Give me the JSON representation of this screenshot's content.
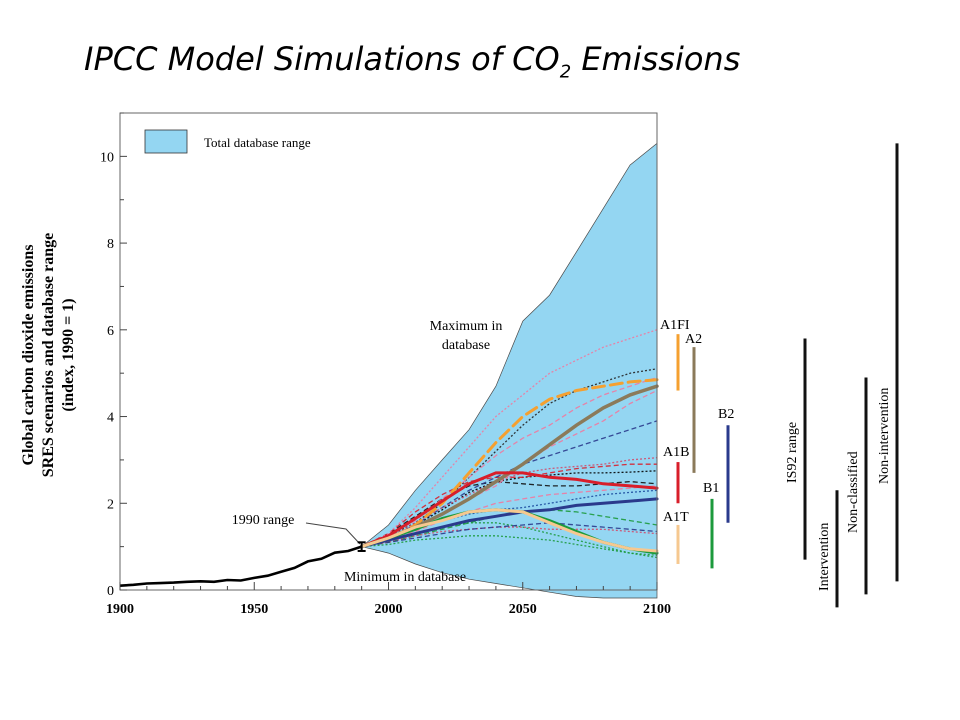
{
  "title": {
    "main": "IPCC Model Simulations of CO",
    "subscript": "2",
    "suffix": " Emissions"
  },
  "chart_data": {
    "type": "line",
    "ylabel": [
      "Global carbon dioxide emissions",
      "SRES scenarios and database range",
      "(index, 1990 = 1)"
    ],
    "xlabel": "",
    "xlim": [
      1900,
      2100
    ],
    "ylim": [
      0,
      11
    ],
    "x_ticks": [
      "1900",
      "1950",
      "2000",
      "2050",
      "2100"
    ],
    "y_ticks": [
      "0",
      "2",
      "4",
      "6",
      "8",
      "10"
    ],
    "legend": {
      "label": "Total database range",
      "color": "#94d6f2",
      "placement": "top-left"
    },
    "annotations": {
      "max": [
        "Maximum in",
        "database"
      ],
      "min": "Minimum in database",
      "range1990": "1990 range"
    },
    "historical": {
      "x": [
        1900,
        1905,
        1910,
        1915,
        1920,
        1925,
        1930,
        1935,
        1940,
        1945,
        1950,
        1955,
        1960,
        1965,
        1970,
        1975,
        1980,
        1985,
        1990
      ],
      "y": [
        0.1,
        0.12,
        0.15,
        0.16,
        0.17,
        0.19,
        0.2,
        0.19,
        0.23,
        0.22,
        0.28,
        0.33,
        0.42,
        0.51,
        0.66,
        0.72,
        0.86,
        0.9,
        1.0
      ]
    },
    "database_range": {
      "x": [
        1990,
        2000,
        2010,
        2020,
        2030,
        2040,
        2050,
        2060,
        2070,
        2080,
        2090,
        2100
      ],
      "max": [
        1.0,
        1.5,
        2.3,
        3.0,
        3.7,
        4.7,
        6.2,
        6.8,
        7.8,
        8.8,
        9.8,
        10.3
      ],
      "min": [
        1.0,
        0.85,
        0.6,
        0.4,
        0.25,
        0.15,
        0.05,
        -0.05,
        -0.15,
        -0.2,
        -0.22,
        -0.25
      ]
    },
    "x": [
      1990,
      2000,
      2010,
      2020,
      2030,
      2040,
      2050,
      2060,
      2070,
      2080,
      2090,
      2100
    ],
    "series": [
      {
        "name": "A1FI",
        "color": "#f5a030",
        "dash": "12,6",
        "width": 3,
        "values": [
          1.0,
          1.15,
          1.5,
          2.0,
          2.7,
          3.4,
          4.0,
          4.4,
          4.6,
          4.7,
          4.8,
          4.85
        ]
      },
      {
        "name": "A2",
        "color": "#8b7a5a",
        "dash": "",
        "width": 3.5,
        "values": [
          1.0,
          1.2,
          1.45,
          1.75,
          2.1,
          2.5,
          2.9,
          3.35,
          3.8,
          4.2,
          4.5,
          4.7
        ]
      },
      {
        "name": "A1B",
        "color": "#d81e2a",
        "dash": "",
        "width": 3,
        "values": [
          1.0,
          1.25,
          1.65,
          2.05,
          2.45,
          2.7,
          2.7,
          2.6,
          2.55,
          2.45,
          2.4,
          2.35
        ]
      },
      {
        "name": "B2",
        "color": "#2a3a8c",
        "dash": "",
        "width": 3,
        "values": [
          1.0,
          1.15,
          1.3,
          1.45,
          1.6,
          1.7,
          1.8,
          1.85,
          1.95,
          2.0,
          2.05,
          2.1
        ]
      },
      {
        "name": "B1",
        "color": "#1c9a3c",
        "dash": "",
        "width": 3,
        "values": [
          1.0,
          1.2,
          1.4,
          1.65,
          1.8,
          1.85,
          1.8,
          1.6,
          1.35,
          1.1,
          0.95,
          0.85
        ]
      },
      {
        "name": "A1T",
        "color": "#f6c890",
        "dash": "",
        "width": 3,
        "values": [
          1.0,
          1.2,
          1.45,
          1.6,
          1.8,
          1.85,
          1.8,
          1.55,
          1.3,
          1.1,
          0.95,
          0.9
        ]
      }
    ],
    "other_runs": [
      {
        "color": "#000000",
        "values": [
          1.0,
          1.2,
          1.5,
          1.85,
          2.25,
          2.5,
          2.6,
          2.65,
          2.7,
          2.7,
          2.72,
          2.75
        ]
      },
      {
        "color": "#111111",
        "values": [
          1.0,
          1.3,
          1.7,
          2.1,
          2.4,
          2.5,
          2.45,
          2.4,
          2.4,
          2.45,
          2.5,
          2.45
        ]
      },
      {
        "color": "#222222",
        "values": [
          1.0,
          1.25,
          1.55,
          2.0,
          2.6,
          3.2,
          3.8,
          4.3,
          4.6,
          4.8,
          5.0,
          5.1
        ]
      },
      {
        "color": "#d81e2a",
        "values": [
          1.0,
          1.3,
          1.8,
          2.2,
          2.5,
          2.6,
          2.6,
          2.7,
          2.8,
          2.85,
          2.9,
          2.9
        ]
      },
      {
        "color": "#1e4fa0",
        "values": [
          1.0,
          1.2,
          1.45,
          1.6,
          1.75,
          1.85,
          1.9,
          2.0,
          2.1,
          2.2,
          2.25,
          2.3
        ]
      },
      {
        "color": "#2a3a8c",
        "values": [
          1.0,
          1.2,
          1.5,
          1.9,
          2.3,
          2.6,
          2.9,
          3.1,
          3.3,
          3.5,
          3.7,
          3.9
        ]
      },
      {
        "color": "#1c9a3c",
        "values": [
          1.0,
          1.15,
          1.3,
          1.45,
          1.55,
          1.55,
          1.45,
          1.3,
          1.15,
          1.0,
          0.85,
          0.75
        ]
      },
      {
        "color": "#1c9a3c",
        "values": [
          1.0,
          1.1,
          1.25,
          1.4,
          1.55,
          1.7,
          1.8,
          1.85,
          1.8,
          1.7,
          1.6,
          1.5
        ]
      },
      {
        "color": "#ee7aa0",
        "values": [
          1.0,
          1.3,
          1.9,
          2.6,
          3.3,
          4.0,
          4.5,
          5.0,
          5.3,
          5.6,
          5.8,
          6.0
        ]
      },
      {
        "color": "#ee7aa0",
        "values": [
          1.0,
          1.25,
          1.6,
          2.1,
          2.6,
          3.1,
          3.5,
          3.8,
          4.2,
          4.5,
          4.7,
          4.9
        ]
      },
      {
        "color": "#d04e6e",
        "values": [
          1.0,
          1.2,
          1.55,
          1.9,
          2.2,
          2.5,
          2.7,
          2.8,
          2.85,
          2.9,
          3.0,
          3.05
        ]
      },
      {
        "color": "#ee7aa0",
        "values": [
          1.0,
          1.15,
          1.35,
          1.6,
          1.8,
          2.0,
          2.1,
          2.2,
          2.25,
          2.3,
          2.35,
          2.4
        ]
      },
      {
        "color": "#d04e6e",
        "values": [
          1.0,
          1.1,
          1.25,
          1.35,
          1.4,
          1.45,
          1.45,
          1.4,
          1.4,
          1.4,
          1.35,
          1.3
        ]
      },
      {
        "color": "#2a3a8c",
        "values": [
          1.0,
          1.1,
          1.2,
          1.3,
          1.4,
          1.45,
          1.5,
          1.55,
          1.5,
          1.45,
          1.4,
          1.35
        ]
      },
      {
        "color": "#1c9a3c",
        "values": [
          1.0,
          1.05,
          1.15,
          1.2,
          1.25,
          1.25,
          1.2,
          1.15,
          1.05,
          0.95,
          0.85,
          0.8
        ]
      },
      {
        "color": "#ee7aa0",
        "values": [
          1.0,
          1.2,
          1.45,
          1.75,
          2.1,
          2.4,
          2.9,
          3.3,
          3.6,
          3.9,
          4.3,
          4.6
        ]
      }
    ],
    "scenario_bars": [
      {
        "label": "A1FI",
        "color": "#f5a030",
        "range": [
          4.6,
          5.9
        ]
      },
      {
        "label": "A2",
        "color": "#8b7a5a",
        "range": [
          2.7,
          5.6
        ]
      },
      {
        "label": "A1B",
        "color": "#d81e2a",
        "range": [
          2.0,
          2.95
        ]
      },
      {
        "label": "B1",
        "color": "#1c9a3c",
        "range": [
          0.5,
          2.1
        ]
      },
      {
        "label": "B2",
        "color": "#2a3a8c",
        "range": [
          1.55,
          3.8
        ]
      },
      {
        "label": "A1T",
        "color": "#f6c890",
        "range": [
          0.6,
          1.5
        ]
      }
    ],
    "other_bars": [
      {
        "label": "IS92 range",
        "range": [
          0.7,
          5.8
        ]
      },
      {
        "label": "Intervention",
        "range": [
          -0.4,
          2.3
        ]
      },
      {
        "label": "Non-classified",
        "range": [
          -0.1,
          4.9
        ]
      },
      {
        "label": "Non-intervention",
        "range": [
          0.2,
          10.3
        ]
      }
    ]
  }
}
